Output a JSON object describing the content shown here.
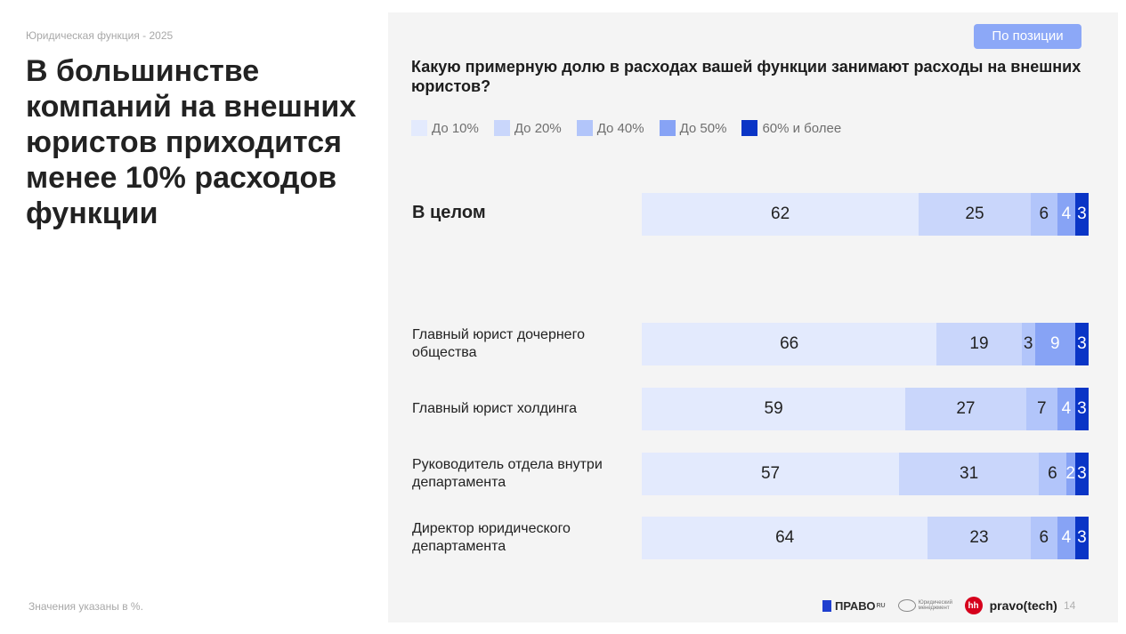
{
  "kicker": "Юридическая функция - 2025",
  "headline": "В большинстве\nкомпаний на внешних\nюристов приходится\nменее 10% расходов\nфункции",
  "footnote": "Значения указаны в %.",
  "filter_button": "По позиции",
  "chart_data": {
    "type": "bar",
    "stacked": true,
    "orientation": "horizontal",
    "title": "Какую примерную долю в расходах вашей функции занимают расходы на внешних юристов?",
    "categories": [
      "В целом",
      "Главный юрист дочернего общества",
      "Главный юрист холдинга",
      "Руководитель отдела внутри департамента",
      "Директор юридического департамента"
    ],
    "series": [
      {
        "name": "До 10%",
        "color": "#e3eafd",
        "text_color": "#222222",
        "values": [
          62,
          66,
          59,
          57,
          64
        ]
      },
      {
        "name": "До 20%",
        "color": "#c9d6fb",
        "text_color": "#222222",
        "values": [
          25,
          19,
          27,
          31,
          23
        ]
      },
      {
        "name": "До 40%",
        "color": "#b2c5fa",
        "text_color": "#222222",
        "values": [
          6,
          3,
          7,
          6,
          6
        ]
      },
      {
        "name": "До 50%",
        "color": "#87a3f5",
        "text_color": "#ffffff",
        "values": [
          4,
          9,
          4,
          2,
          4
        ]
      },
      {
        "name": "60% и более",
        "color": "#0a35c6",
        "text_color": "#ffffff",
        "values": [
          3,
          3,
          3,
          3,
          3
        ]
      }
    ],
    "legend_position": "top-left",
    "grid": false
  },
  "logos": {
    "pravo": "ПРАВО",
    "pravo_suffix": "RU",
    "ym": "Юридический менеджмент",
    "hh": "hh",
    "tech": "pravo(tech)"
  },
  "page_number": "14"
}
